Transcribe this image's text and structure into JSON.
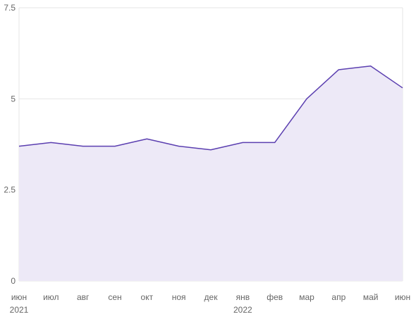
{
  "chart_data": {
    "type": "area",
    "x": [
      "2021-06",
      "2021-07",
      "2021-08",
      "2021-09",
      "2021-10",
      "2021-11",
      "2021-12",
      "2022-01",
      "2022-02",
      "2022-03",
      "2022-04",
      "2022-05",
      "2022-06"
    ],
    "x_tick_labels": [
      "июн",
      "июл",
      "авг",
      "сен",
      "окт",
      "ноя",
      "дек",
      "янв",
      "фев",
      "мар",
      "апр",
      "май",
      "июн"
    ],
    "year_labels": [
      {
        "label": "2021",
        "at_index": 0
      },
      {
        "label": "2022",
        "at_index": 7
      }
    ],
    "series": [
      {
        "values": [
          3.7,
          3.8,
          3.7,
          3.7,
          3.9,
          3.7,
          3.6,
          3.8,
          3.8,
          5.0,
          5.8,
          5.9,
          5.3
        ]
      }
    ],
    "y_ticks": [
      "0",
      "2.5",
      "5",
      "7.5"
    ],
    "y_tick_values": [
      0,
      2.5,
      5,
      7.5
    ],
    "ylim": [
      0,
      7.5
    ],
    "grid": true,
    "title": "",
    "xlabel": "",
    "ylabel": "",
    "colors": {
      "line": "#5b3fb0",
      "fill": "#ede9f7",
      "grid": "#e6e6e6",
      "tick_text": "#666666"
    }
  }
}
